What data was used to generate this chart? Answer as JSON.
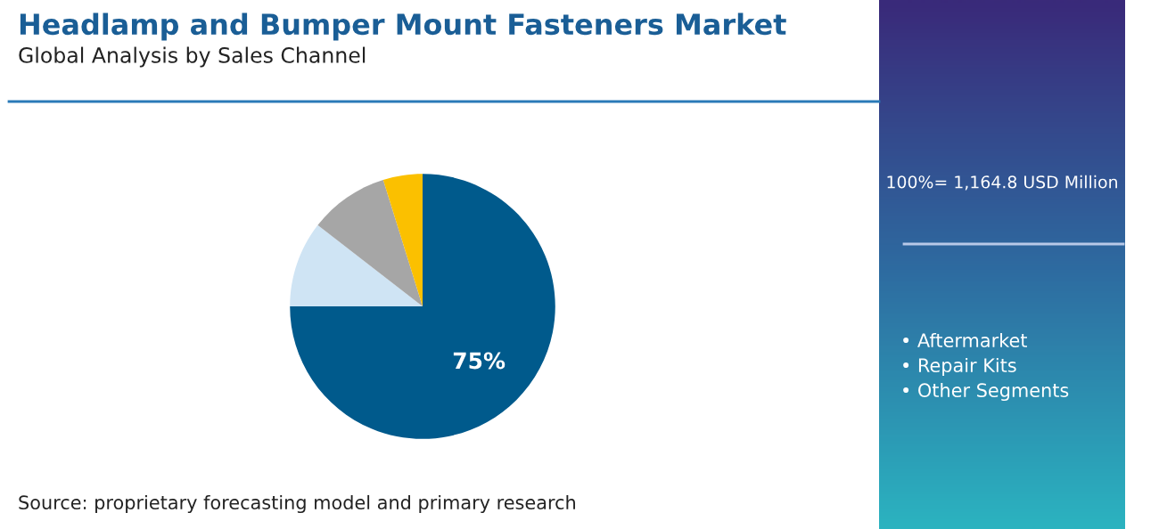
{
  "chart_data": {
    "type": "pie",
    "title": "Headlamp and Bumper Mount Fasteners Market",
    "subtitle": "Global Analysis by Sales Channel",
    "categories": [
      null,
      null,
      null,
      null
    ],
    "values": [
      75,
      10.5,
      9.7,
      4.8
    ],
    "colors": [
      "#005a8c",
      "#cfe4f4",
      "#a6a6a6",
      "#fbc000"
    ],
    "value_labels": [
      "75%",
      null,
      null,
      null
    ],
    "legend": false,
    "annotations": [
      "100%= 1,164.8 USD Million",
      "• Aftermarket",
      "• Repair Kits",
      "• Other Segments",
      "Source: proprietary forecasting model and primary research"
    ]
  }
}
